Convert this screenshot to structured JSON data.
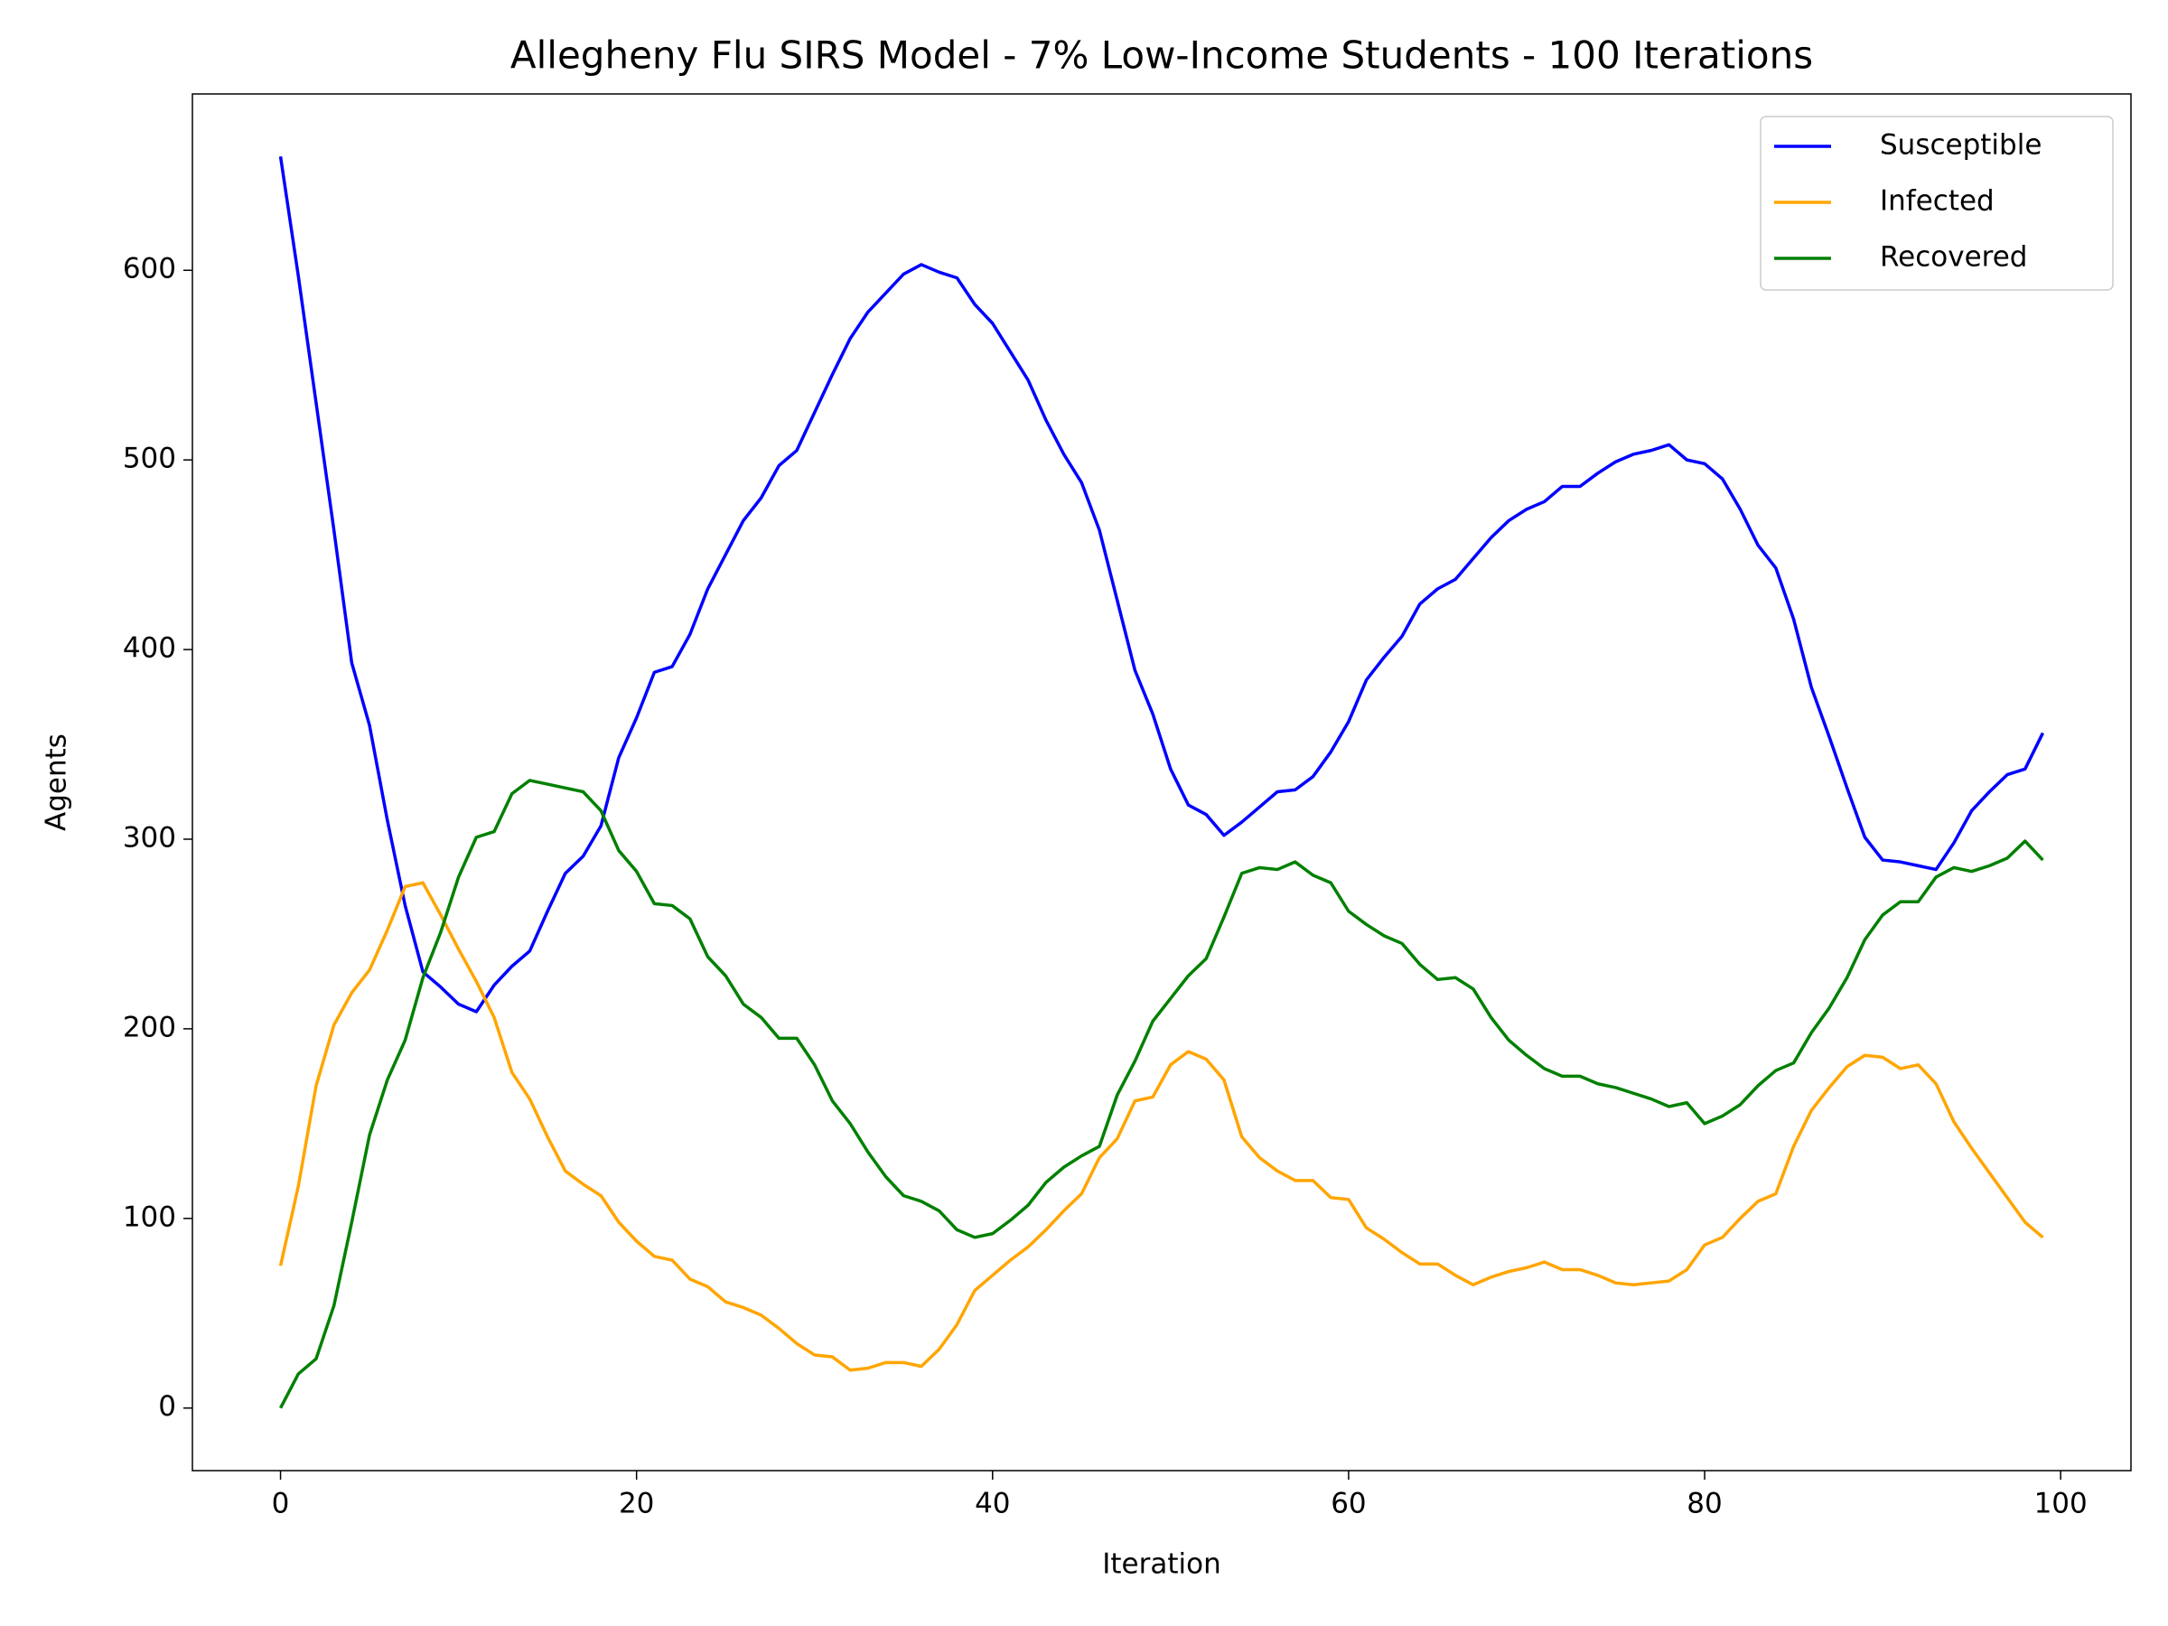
{
  "chart_data": {
    "type": "line",
    "title": "Allegheny Flu SIRS Model - 7% Low-Income Students - 100 Iterations",
    "xlabel": "Iteration",
    "ylabel": "Agents",
    "x": [
      0,
      1,
      2,
      3,
      4,
      5,
      6,
      7,
      8,
      9,
      10,
      11,
      12,
      13,
      14,
      15,
      16,
      17,
      18,
      19,
      20,
      21,
      22,
      23,
      24,
      25,
      26,
      27,
      28,
      29,
      30,
      31,
      32,
      33,
      34,
      35,
      36,
      37,
      38,
      39,
      40,
      41,
      42,
      43,
      44,
      45,
      46,
      47,
      48,
      49,
      50,
      51,
      52,
      53,
      54,
      55,
      56,
      57,
      58,
      59,
      60,
      61,
      62,
      63,
      64,
      65,
      66,
      67,
      68,
      69,
      70,
      71,
      72,
      73,
      74,
      75,
      76,
      77,
      78,
      79,
      80,
      81,
      82,
      83,
      84,
      85,
      86,
      87,
      88,
      89,
      90,
      91,
      92,
      93,
      94,
      95,
      96,
      97,
      98,
      99
    ],
    "series": [
      {
        "name": "Susceptible",
        "color": "#0000ff",
        "values": [
          660,
          597,
          530,
          463,
          393,
          360,
          310,
          265,
          230,
          222,
          213,
          209,
          223,
          233,
          241,
          262,
          282,
          291,
          307,
          343,
          364,
          388,
          391,
          408,
          432,
          450,
          468,
          480,
          497,
          505,
          525,
          545,
          564,
          578,
          588,
          598,
          603,
          599,
          596,
          582,
          572,
          557,
          542,
          521,
          503,
          488,
          463,
          426,
          389,
          366,
          337,
          318,
          313,
          302,
          309,
          317,
          325,
          326,
          333,
          346,
          362,
          384,
          396,
          407,
          424,
          432,
          437,
          448,
          459,
          468,
          474,
          478,
          486,
          486,
          493,
          499,
          503,
          505,
          508,
          500,
          498,
          490,
          474,
          455,
          443,
          416,
          380,
          354,
          327,
          301,
          289,
          288,
          286,
          284,
          298,
          315,
          325,
          334,
          337,
          356
        ]
      },
      {
        "name": "Infected",
        "color": "#ffa500",
        "values": [
          75,
          117,
          170,
          202,
          219,
          231,
          252,
          275,
          277,
          260,
          242,
          225,
          206,
          177,
          163,
          143,
          125,
          118,
          112,
          98,
          88,
          80,
          78,
          68,
          64,
          56,
          53,
          49,
          42,
          34,
          28,
          27,
          20,
          21,
          24,
          24,
          22,
          31,
          44,
          62,
          70,
          78,
          85,
          94,
          104,
          113,
          132,
          142,
          162,
          164,
          181,
          188,
          184,
          173,
          143,
          132,
          125,
          120,
          120,
          111,
          110,
          95,
          89,
          82,
          76,
          76,
          70,
          65,
          69,
          72,
          74,
          77,
          73,
          73,
          70,
          66,
          65,
          66,
          67,
          73,
          86,
          90,
          100,
          109,
          113,
          138,
          157,
          169,
          180,
          186,
          185,
          179,
          181,
          171,
          151,
          137,
          124,
          111,
          98,
          90
        ]
      },
      {
        "name": "Recovered",
        "color": "#008000",
        "values": [
          0,
          18,
          26,
          54,
          98,
          144,
          173,
          194,
          227,
          251,
          280,
          301,
          304,
          324,
          331,
          329,
          327,
          325,
          315,
          294,
          283,
          266,
          265,
          258,
          238,
          228,
          213,
          206,
          195,
          195,
          181,
          162,
          150,
          135,
          122,
          112,
          109,
          104,
          94,
          90,
          92,
          99,
          107,
          119,
          127,
          133,
          138,
          165,
          183,
          204,
          216,
          228,
          237,
          259,
          282,
          285,
          284,
          288,
          281,
          277,
          262,
          255,
          249,
          245,
          234,
          226,
          227,
          221,
          206,
          194,
          186,
          179,
          175,
          175,
          171,
          169,
          166,
          163,
          159,
          161,
          150,
          154,
          160,
          170,
          178,
          182,
          198,
          211,
          227,
          247,
          260,
          267,
          267,
          280,
          285,
          283,
          286,
          290,
          299,
          289
        ]
      }
    ],
    "xlim": [
      -4.95,
      103.95
    ],
    "xticks": [
      0,
      20,
      40,
      60,
      80,
      100
    ],
    "ylim": [
      -33,
      693
    ],
    "yticks": [
      0,
      100,
      200,
      300,
      400,
      500,
      600
    ],
    "grid": false,
    "legend": "upper right"
  }
}
